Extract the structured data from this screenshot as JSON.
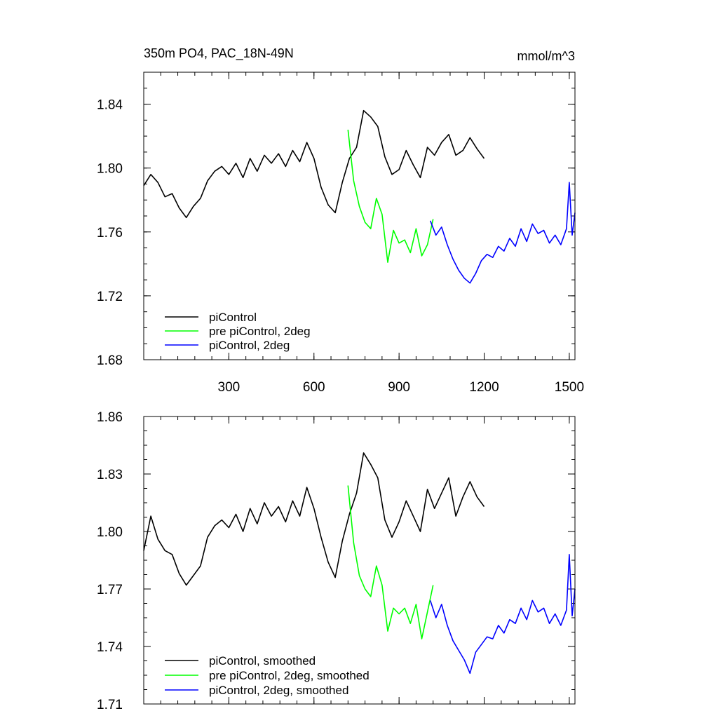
{
  "chart_data": [
    {
      "type": "line",
      "title": "350m PO4, PAC_18N-49N",
      "units": "mmol/m^3",
      "xlim": [
        0,
        1520
      ],
      "ylim": [
        1.68,
        1.86
      ],
      "xticks": [
        300,
        600,
        900,
        1200,
        1500
      ],
      "xtick_labels": [
        "300",
        "600",
        "900",
        "1200",
        "1500"
      ],
      "yticks": [
        1.68,
        1.72,
        1.76,
        1.8,
        1.84
      ],
      "ytick_labels": [
        "1.68",
        "1.72",
        "1.76",
        "1.80",
        "1.84"
      ],
      "legend_position": "bottom-left",
      "series": [
        {
          "name": "piControl",
          "color": "#000000",
          "x": [
            0,
            25,
            50,
            75,
            100,
            125,
            150,
            175,
            200,
            225,
            250,
            275,
            300,
            325,
            350,
            375,
            400,
            425,
            450,
            475,
            500,
            525,
            550,
            575,
            600,
            625,
            650,
            675,
            700,
            725,
            750,
            775,
            800,
            825,
            850,
            875,
            900,
            925,
            950,
            975,
            1000,
            1025,
            1050,
            1075,
            1100,
            1125,
            1150,
            1175,
            1200
          ],
          "values": [
            1.789,
            1.796,
            1.791,
            1.782,
            1.784,
            1.775,
            1.769,
            1.776,
            1.781,
            1.792,
            1.798,
            1.801,
            1.796,
            1.803,
            1.794,
            1.806,
            1.798,
            1.808,
            1.803,
            1.809,
            1.801,
            1.811,
            1.804,
            1.816,
            1.806,
            1.788,
            1.777,
            1.772,
            1.791,
            1.806,
            1.813,
            1.836,
            1.832,
            1.826,
            1.807,
            1.796,
            1.799,
            1.811,
            1.802,
            1.794,
            1.813,
            1.808,
            1.816,
            1.821,
            1.808,
            1.811,
            1.819,
            1.812,
            1.806
          ]
        },
        {
          "name": "pre piControl, 2deg",
          "color": "#00ff00",
          "x": [
            720,
            740,
            760,
            780,
            800,
            820,
            840,
            860,
            880,
            900,
            920,
            940,
            960,
            980,
            1000,
            1020
          ],
          "values": [
            1.824,
            1.792,
            1.776,
            1.766,
            1.762,
            1.781,
            1.771,
            1.741,
            1.761,
            1.753,
            1.755,
            1.747,
            1.762,
            1.745,
            1.752,
            1.768
          ]
        },
        {
          "name": "piControl, 2deg",
          "color": "#0000ff",
          "x": [
            1010,
            1030,
            1050,
            1070,
            1090,
            1110,
            1130,
            1150,
            1170,
            1190,
            1210,
            1230,
            1250,
            1270,
            1290,
            1310,
            1330,
            1350,
            1370,
            1390,
            1410,
            1430,
            1450,
            1470,
            1490,
            1500,
            1510,
            1520
          ],
          "values": [
            1.767,
            1.758,
            1.763,
            1.752,
            1.743,
            1.736,
            1.731,
            1.728,
            1.734,
            1.742,
            1.746,
            1.744,
            1.751,
            1.748,
            1.756,
            1.751,
            1.762,
            1.754,
            1.765,
            1.759,
            1.761,
            1.753,
            1.758,
            1.752,
            1.762,
            1.791,
            1.758,
            1.772
          ]
        }
      ],
      "legend": [
        "piControl",
        "pre piControl, 2deg",
        "piControl, 2deg"
      ]
    },
    {
      "type": "line",
      "title": "",
      "xlim": [
        0,
        1520
      ],
      "ylim": [
        1.71,
        1.86
      ],
      "xticks": [
        300,
        600,
        900,
        1200,
        1500
      ],
      "xtick_labels": [],
      "yticks": [
        1.71,
        1.74,
        1.77,
        1.8,
        1.83,
        1.86
      ],
      "ytick_labels": [
        "1.71",
        "1.74",
        "1.77",
        "1.80",
        "1.83",
        "1.86"
      ],
      "legend_position": "bottom-left",
      "series": [
        {
          "name": "piControl, smoothed",
          "color": "#000000",
          "x": [
            0,
            25,
            50,
            75,
            100,
            125,
            150,
            175,
            200,
            225,
            250,
            275,
            300,
            325,
            350,
            375,
            400,
            425,
            450,
            475,
            500,
            525,
            550,
            575,
            600,
            625,
            650,
            675,
            700,
            725,
            750,
            775,
            800,
            825,
            850,
            875,
            900,
            925,
            950,
            975,
            1000,
            1025,
            1050,
            1075,
            1100,
            1125,
            1150,
            1175,
            1200
          ],
          "values": [
            1.79,
            1.808,
            1.796,
            1.79,
            1.788,
            1.778,
            1.772,
            1.777,
            1.782,
            1.797,
            1.803,
            1.806,
            1.802,
            1.809,
            1.8,
            1.812,
            1.804,
            1.815,
            1.808,
            1.813,
            1.805,
            1.816,
            1.808,
            1.823,
            1.812,
            1.797,
            1.784,
            1.776,
            1.795,
            1.809,
            1.82,
            1.841,
            1.835,
            1.828,
            1.806,
            1.797,
            1.805,
            1.816,
            1.808,
            1.8,
            1.822,
            1.812,
            1.82,
            1.828,
            1.808,
            1.818,
            1.826,
            1.818,
            1.813
          ]
        },
        {
          "name": "pre piControl, 2deg, smoothed",
          "color": "#00ff00",
          "x": [
            720,
            740,
            760,
            780,
            800,
            820,
            840,
            860,
            880,
            900,
            920,
            940,
            960,
            980,
            1000,
            1020
          ],
          "values": [
            1.824,
            1.794,
            1.777,
            1.77,
            1.766,
            1.782,
            1.772,
            1.748,
            1.76,
            1.757,
            1.76,
            1.752,
            1.762,
            1.744,
            1.758,
            1.772
          ]
        },
        {
          "name": "piControl, 2deg, smoothed",
          "color": "#0000ff",
          "x": [
            1010,
            1030,
            1050,
            1070,
            1090,
            1110,
            1130,
            1150,
            1170,
            1190,
            1210,
            1230,
            1250,
            1270,
            1290,
            1310,
            1330,
            1350,
            1370,
            1390,
            1410,
            1430,
            1450,
            1470,
            1490,
            1500,
            1510,
            1520
          ],
          "values": [
            1.764,
            1.755,
            1.762,
            1.751,
            1.743,
            1.738,
            1.733,
            1.726,
            1.737,
            1.741,
            1.745,
            1.744,
            1.751,
            1.747,
            1.754,
            1.752,
            1.76,
            1.754,
            1.764,
            1.758,
            1.76,
            1.752,
            1.757,
            1.751,
            1.759,
            1.788,
            1.756,
            1.77
          ]
        }
      ],
      "legend": [
        "piControl, smoothed",
        "pre piControl, 2deg, smoothed",
        "piControl, 2deg, smoothed"
      ]
    }
  ]
}
